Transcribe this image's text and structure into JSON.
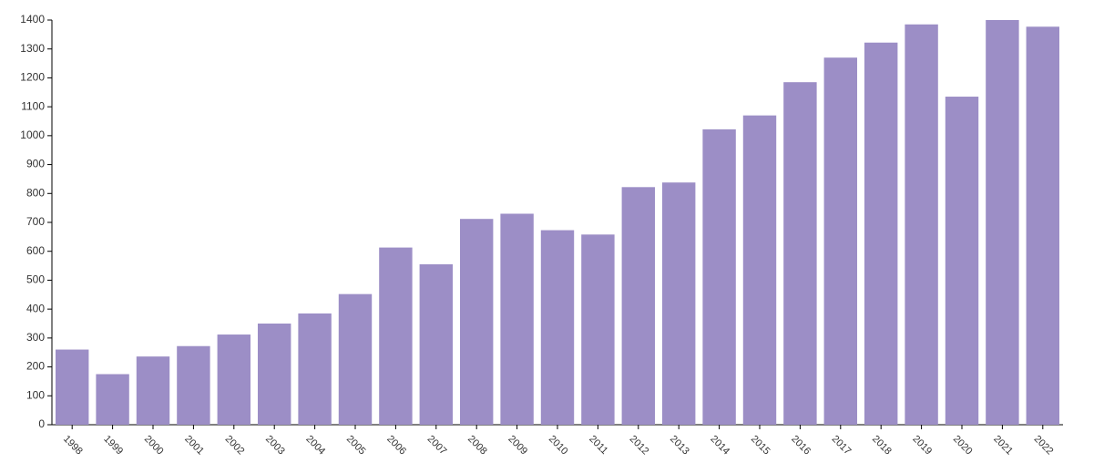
{
  "chart_data": {
    "type": "bar",
    "categories": [
      "1998",
      "1999",
      "2000",
      "2001",
      "2002",
      "2003",
      "2004",
      "2005",
      "2006",
      "2007",
      "2008",
      "2009",
      "2010",
      "2011",
      "2012",
      "2013",
      "2014",
      "2015",
      "2016",
      "2017",
      "2018",
      "2019",
      "2020",
      "2021",
      "2022"
    ],
    "values": [
      260,
      175,
      236,
      272,
      312,
      350,
      385,
      452,
      613,
      555,
      712,
      730,
      673,
      658,
      822,
      838,
      1022,
      1070,
      1185,
      1270,
      1322,
      1385,
      1135,
      1400,
      1377
    ],
    "color": "#9c8ec6",
    "ylim": [
      0,
      1400
    ],
    "yticks": [
      0,
      100,
      200,
      300,
      400,
      500,
      600,
      700,
      800,
      900,
      1000,
      1100,
      1200,
      1300,
      1400
    ],
    "grid": false
  }
}
